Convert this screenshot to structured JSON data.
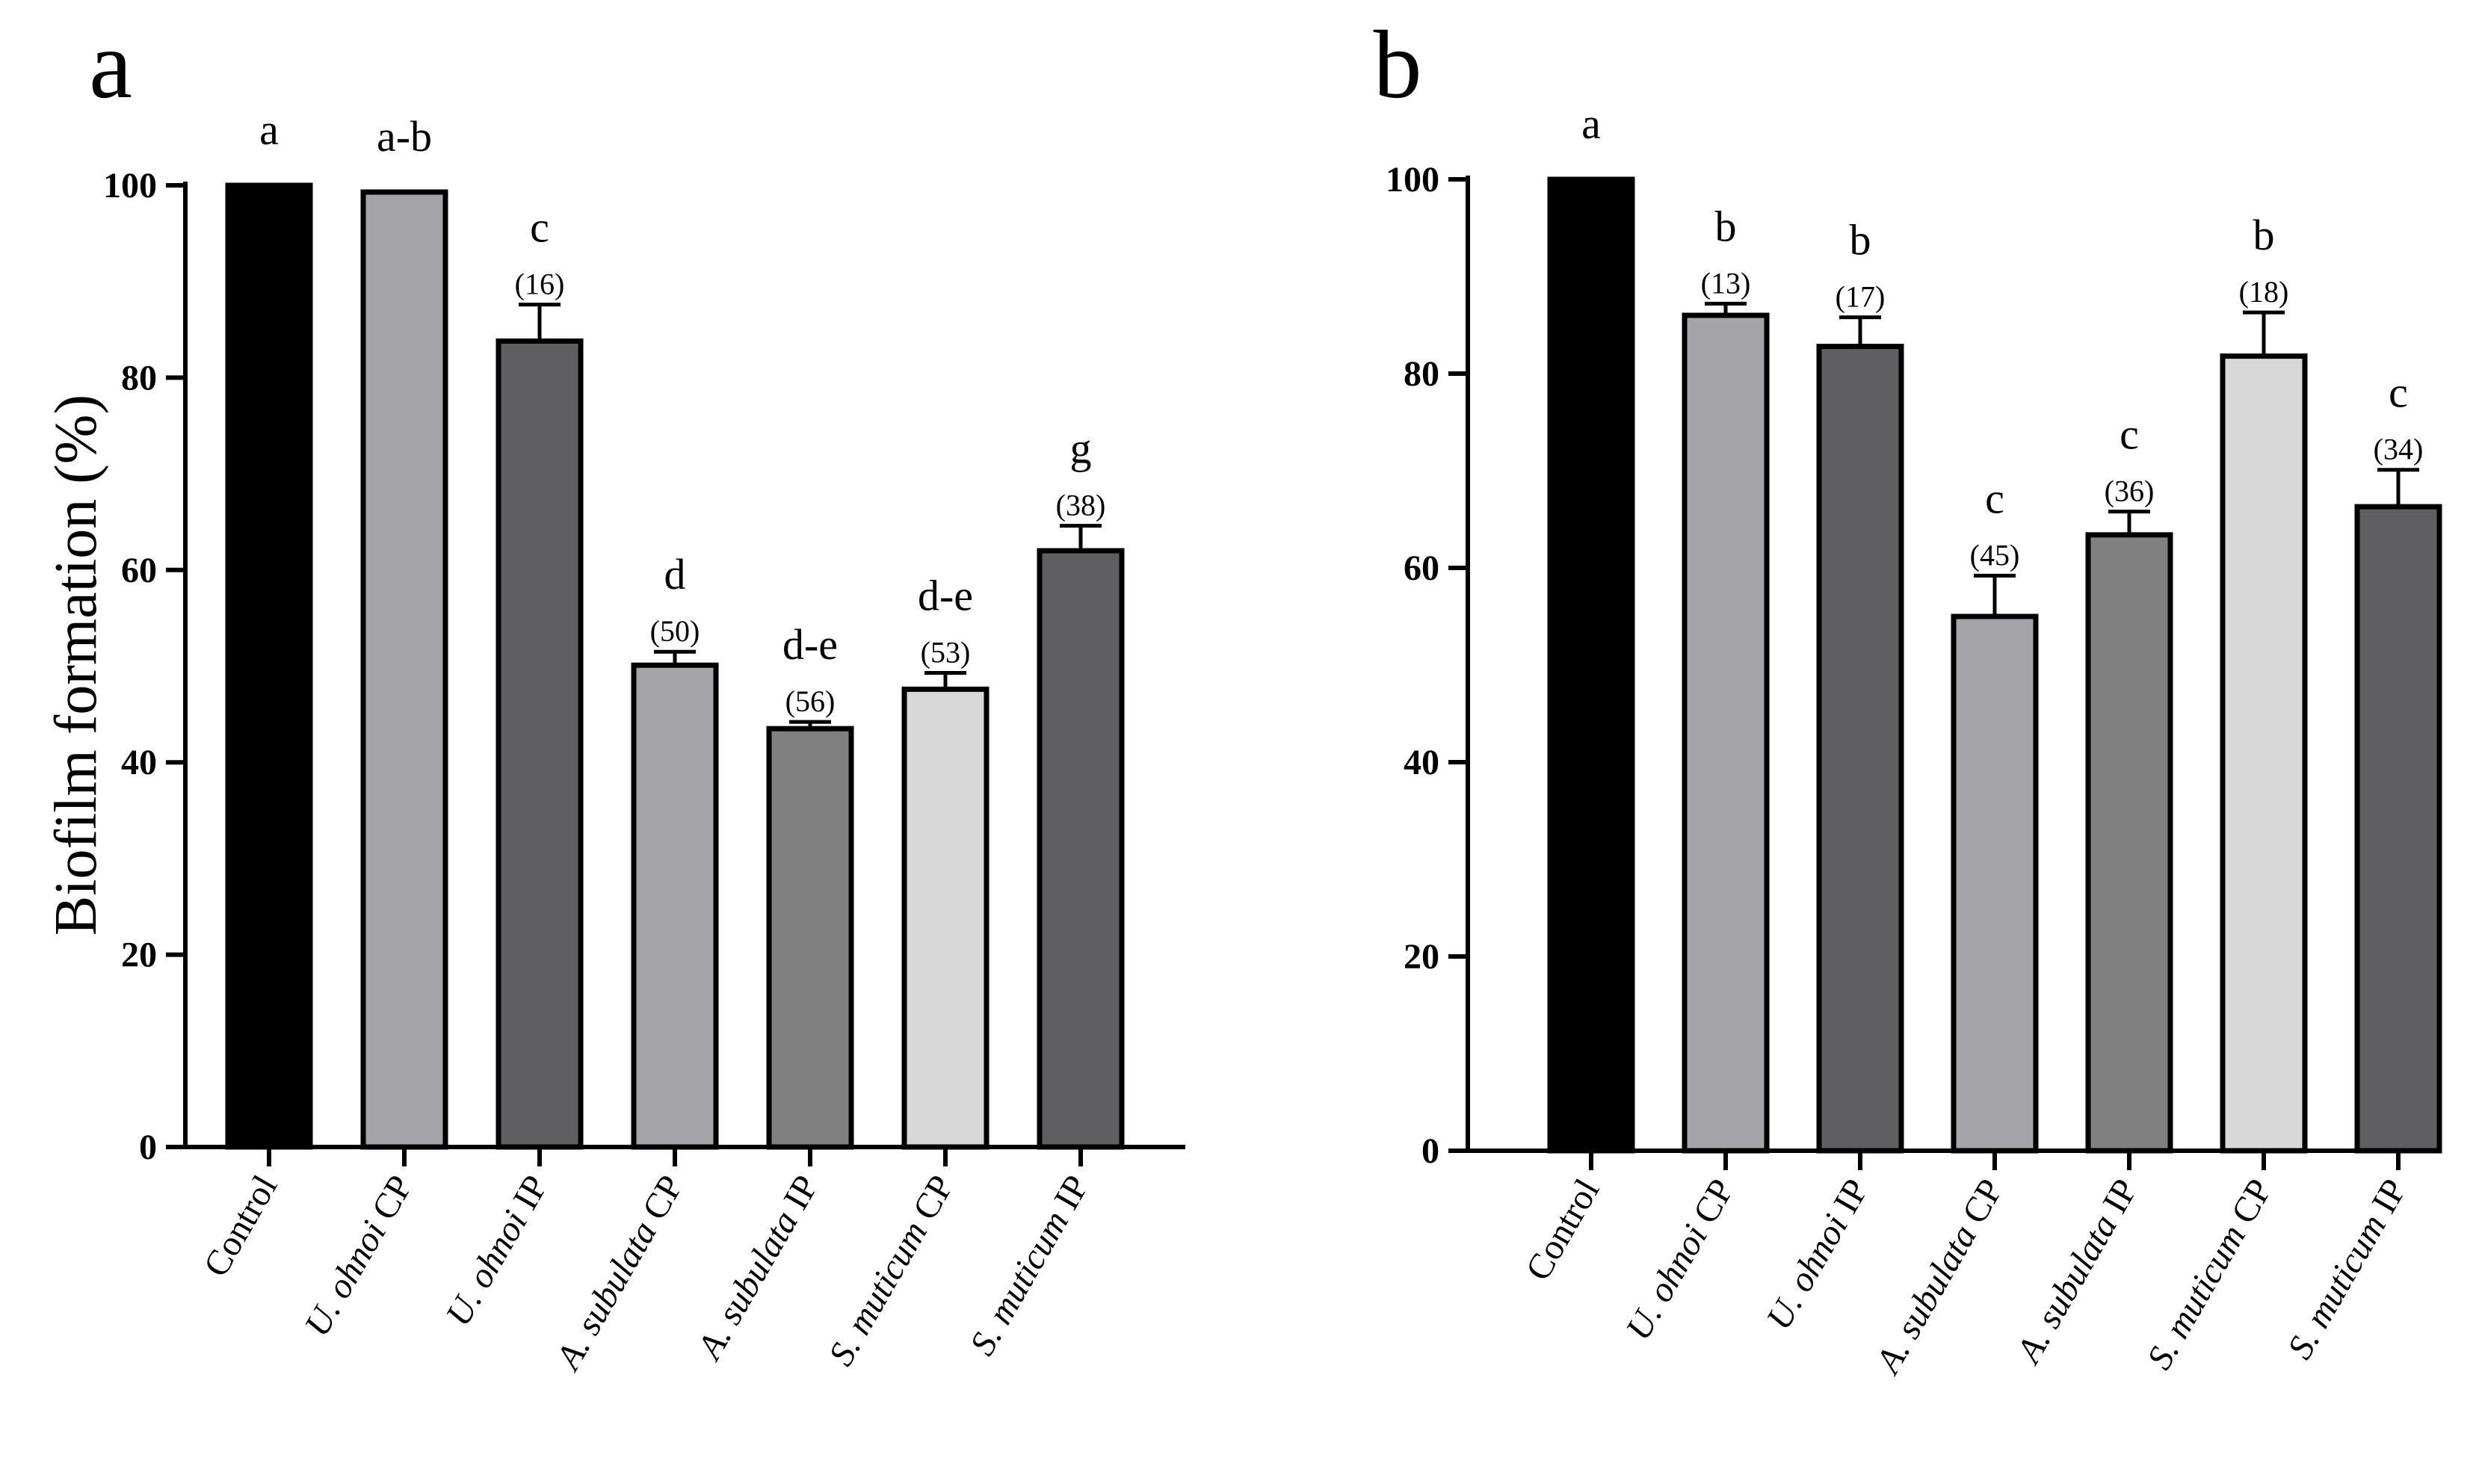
{
  "chart_data": [
    {
      "panel": "a",
      "type": "bar",
      "title": "",
      "xlabel": "",
      "ylabel": "Biofilm formation (%)",
      "ylim": [
        0,
        100
      ],
      "yticks": [
        0,
        20,
        40,
        60,
        80,
        100
      ],
      "categories": [
        {
          "italic": "",
          "rest": "Control"
        },
        {
          "italic": "U. ohnoi",
          "rest": " CP"
        },
        {
          "italic": "U. ohnoi",
          "rest": " IP"
        },
        {
          "italic": "A. subulata",
          "rest": " CP"
        },
        {
          "italic": "A. subulata",
          "rest": " IP"
        },
        {
          "italic": "S. muticum",
          "rest": " CP"
        },
        {
          "italic": "S. muticum",
          "rest": " IP"
        }
      ],
      "values": [
        100,
        99.3,
        83.8,
        50.1,
        43.5,
        47.6,
        62.0
      ],
      "errors": [
        0,
        0,
        3.8,
        1.4,
        0.7,
        1.7,
        2.6
      ],
      "significance": [
        "a",
        "a-b",
        "c",
        "d",
        "d-e",
        "d-e",
        "g"
      ],
      "percent_labels": [
        "",
        "",
        "(16)",
        "(50)",
        "(56)",
        "(53)",
        "(38)"
      ],
      "colors": [
        "#000000",
        "#a4a4a8",
        "#5f5f61",
        "#a4a4a8",
        "#808080",
        "#d8d8d8",
        "#5f5f61"
      ]
    },
    {
      "panel": "b",
      "type": "bar",
      "title": "",
      "xlabel": "",
      "ylabel": "",
      "ylim": [
        0,
        100
      ],
      "yticks": [
        0,
        20,
        40,
        60,
        80,
        100
      ],
      "categories": [
        {
          "italic": "",
          "rest": "Control"
        },
        {
          "italic": "U. ohnoi",
          "rest": " CP"
        },
        {
          "italic": "U. ohnoi",
          "rest": " IP"
        },
        {
          "italic": "A. subulata",
          "rest": " CP"
        },
        {
          "italic": "A. subulata",
          "rest": " IP"
        },
        {
          "italic": "S. muticum",
          "rest": " CP"
        },
        {
          "italic": "S. muticum",
          "rest": " IP"
        }
      ],
      "values": [
        100,
        86.0,
        82.8,
        55.0,
        63.4,
        81.8,
        66.3
      ],
      "errors": [
        0,
        1.2,
        3.0,
        4.2,
        2.4,
        4.5,
        3.8
      ],
      "significance": [
        "a",
        "b",
        "b",
        "c",
        "c",
        "b",
        "c"
      ],
      "percent_labels": [
        "",
        "(13)",
        "(17)",
        "(45)",
        "(36)",
        "(18)",
        "(34)"
      ],
      "colors": [
        "#000000",
        "#a4a4a8",
        "#5f5f61",
        "#a4a4a8",
        "#808080",
        "#d8d8d8",
        "#5f5f61"
      ]
    }
  ]
}
